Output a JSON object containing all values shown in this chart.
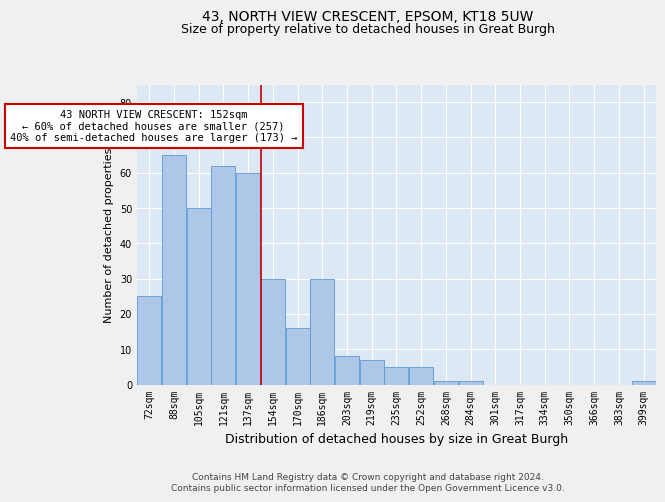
{
  "title": "43, NORTH VIEW CRESCENT, EPSOM, KT18 5UW",
  "subtitle": "Size of property relative to detached houses in Great Burgh",
  "xlabel": "Distribution of detached houses by size in Great Burgh",
  "ylabel": "Number of detached properties",
  "categories": [
    "72sqm",
    "88sqm",
    "105sqm",
    "121sqm",
    "137sqm",
    "154sqm",
    "170sqm",
    "186sqm",
    "203sqm",
    "219sqm",
    "235sqm",
    "252sqm",
    "268sqm",
    "284sqm",
    "301sqm",
    "317sqm",
    "334sqm",
    "350sqm",
    "366sqm",
    "383sqm",
    "399sqm"
  ],
  "values": [
    25,
    65,
    50,
    62,
    60,
    30,
    16,
    30,
    8,
    7,
    5,
    5,
    1,
    1,
    0,
    0,
    0,
    0,
    0,
    0,
    1
  ],
  "bar_color": "#aec6e8",
  "bar_edgecolor": "#5b9bd5",
  "property_line_label": "43 NORTH VIEW CRESCENT: 152sqm",
  "annotation_line1": "← 60% of detached houses are smaller (257)",
  "annotation_line2": "40% of semi-detached houses are larger (173) →",
  "annotation_box_color": "#ffffff",
  "annotation_box_edgecolor": "#cc0000",
  "property_line_color": "#cc0000",
  "property_line_index": 4.5,
  "ylim": [
    0,
    85
  ],
  "yticks": [
    0,
    10,
    20,
    30,
    40,
    50,
    60,
    70,
    80
  ],
  "background_color": "#dce9f5",
  "grid_color": "#ffffff",
  "footer_line1": "Contains HM Land Registry data © Crown copyright and database right 2024.",
  "footer_line2": "Contains public sector information licensed under the Open Government Licence v3.0.",
  "title_fontsize": 10,
  "subtitle_fontsize": 9,
  "xlabel_fontsize": 9,
  "ylabel_fontsize": 8,
  "tick_fontsize": 7,
  "annot_fontsize": 7.5,
  "footer_fontsize": 6.5
}
